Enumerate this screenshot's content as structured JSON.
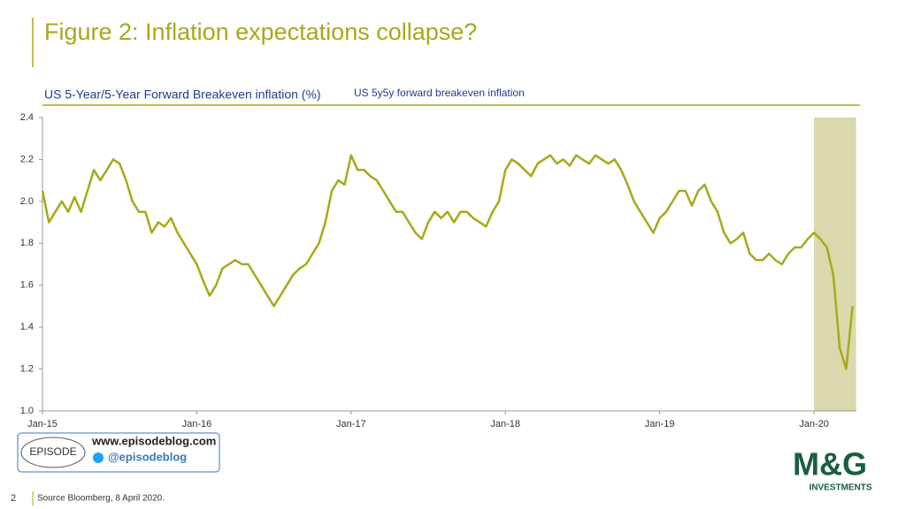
{
  "chart_data": {
    "type": "line",
    "title": "Figure 2: Inflation expectations collapse?",
    "subtitle": "US 5-Year/5-Year Forward Breakeven inflation (%)",
    "categories": [
      "Jan-15",
      null,
      null,
      null,
      null,
      null,
      null,
      null,
      null,
      null,
      null,
      null,
      null,
      null,
      null,
      null,
      null,
      null,
      null,
      null,
      null,
      null,
      null,
      null,
      "Jan-16",
      null,
      null,
      null,
      null,
      null,
      null,
      null,
      null,
      null,
      null,
      null,
      null,
      null,
      null,
      null,
      null,
      null,
      null,
      null,
      null,
      null,
      null,
      null,
      "Jan-17",
      null,
      null,
      null,
      null,
      null,
      null,
      null,
      null,
      null,
      null,
      null,
      null,
      null,
      null,
      null,
      null,
      null,
      null,
      null,
      null,
      null,
      null,
      null,
      "Jan-18",
      null,
      null,
      null,
      null,
      null,
      null,
      null,
      null,
      null,
      null,
      null,
      null,
      null,
      null,
      null,
      null,
      null,
      null,
      null,
      null,
      null,
      null,
      null,
      "Jan-19",
      null,
      null,
      null,
      null,
      null,
      null,
      null,
      null,
      null,
      null,
      null,
      null,
      null,
      null,
      null,
      null,
      null,
      null,
      null,
      null,
      null,
      null,
      null,
      "Jan-20",
      null,
      null,
      null,
      null,
      null,
      null
    ],
    "series": [
      {
        "name": "US 5y5y forward breakeven inflation",
        "color": "#a8a81a",
        "values": [
          2.05,
          1.9,
          1.95,
          2.0,
          1.95,
          2.02,
          1.95,
          2.05,
          2.15,
          2.1,
          2.15,
          2.2,
          2.18,
          2.1,
          2.0,
          1.95,
          1.95,
          1.85,
          1.9,
          1.88,
          1.92,
          1.85,
          1.8,
          1.75,
          1.7,
          1.62,
          1.55,
          1.6,
          1.68,
          1.7,
          1.72,
          1.7,
          1.7,
          1.65,
          1.6,
          1.55,
          1.5,
          1.55,
          1.6,
          1.65,
          1.68,
          1.7,
          1.75,
          1.8,
          1.9,
          2.05,
          2.1,
          2.08,
          2.22,
          2.15,
          2.15,
          2.12,
          2.1,
          2.05,
          2.0,
          1.95,
          1.95,
          1.9,
          1.85,
          1.82,
          1.9,
          1.95,
          1.92,
          1.95,
          1.9,
          1.95,
          1.95,
          1.92,
          1.9,
          1.88,
          1.95,
          2.0,
          2.15,
          2.2,
          2.18,
          2.15,
          2.12,
          2.18,
          2.2,
          2.22,
          2.18,
          2.2,
          2.17,
          2.22,
          2.2,
          2.18,
          2.22,
          2.2,
          2.18,
          2.2,
          2.15,
          2.08,
          2.0,
          1.95,
          1.9,
          1.85,
          1.92,
          1.95,
          2.0,
          2.05,
          2.05,
          1.98,
          2.05,
          2.08,
          2.0,
          1.95,
          1.85,
          1.8,
          1.82,
          1.85,
          1.75,
          1.72,
          1.72,
          1.75,
          1.72,
          1.7,
          1.75,
          1.78,
          1.78,
          1.82,
          1.85,
          1.82,
          1.78,
          1.65,
          1.3,
          1.2,
          1.5
        ]
      }
    ],
    "ylim": [
      1.0,
      2.4
    ],
    "yticks": [
      {
        "value": 1.0,
        "label": "1.0"
      },
      1.2,
      1.4,
      1.6,
      1.8,
      {
        "value": 2.0,
        "label": "2.0"
      },
      2.2,
      2.4
    ],
    "source": "Source Bloomberg, 8 April 2020.",
    "page_number": "2",
    "blog_url": "www.episodeblog.com",
    "blog_handle": "@episodeblog",
    "blog_logo": "EPISODE",
    "brand": "M&G",
    "brand_sub": "INVESTMENTS"
  }
}
